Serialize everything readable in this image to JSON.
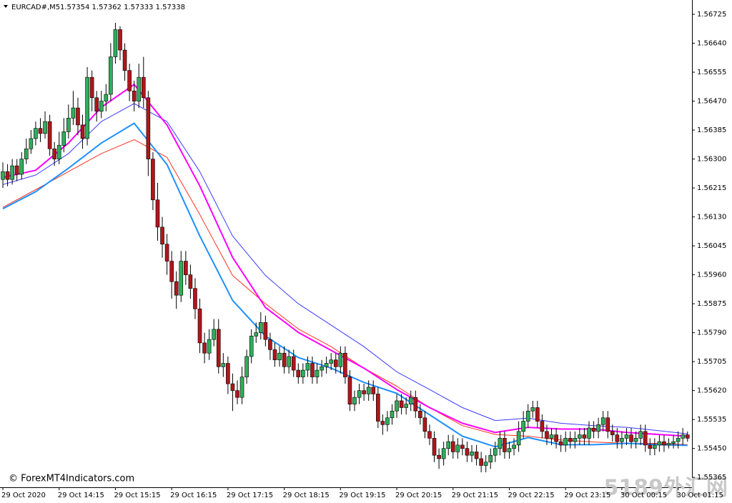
{
  "chart_data": {
    "type": "candlestick",
    "symbol": "EURCAD#,M5",
    "ohlc_text": "1.57354 1.57362 1.57333 1.57338",
    "watermark": "© ForexMT4Indicators.com",
    "watermark2": "5189外汇网",
    "bull_color": "#2fae5a",
    "bear_color": "#b0161b",
    "ylim": [
      1.55336,
      1.56767
    ],
    "yticks": [
      1.56725,
      {
        "value": 1.5664,
        "label": "1.56640"
      },
      1.56555,
      {
        "value": 1.5647,
        "label": "1.56470"
      },
      1.56385,
      {
        "value": 1.563,
        "label": "1.56300"
      },
      1.56215,
      {
        "value": 1.5613,
        "label": "1.56130"
      },
      1.56045,
      {
        "value": 1.5596,
        "label": "1.55960"
      },
      1.55875,
      {
        "value": 1.5579,
        "label": "1.55790"
      },
      1.55705,
      {
        "value": 1.5562,
        "label": "1.55620"
      },
      1.55535,
      {
        "value": 1.5545,
        "label": "1.55450"
      },
      1.55365
    ],
    "categories": [
      "29 Oct 2020",
      null,
      null,
      null,
      null,
      null,
      null,
      null,
      null,
      null,
      null,
      null,
      "29 Oct 14:15",
      null,
      null,
      null,
      null,
      null,
      null,
      null,
      null,
      null,
      null,
      null,
      "29 Oct 15:15",
      null,
      null,
      null,
      null,
      null,
      null,
      null,
      null,
      null,
      null,
      null,
      "29 Oct 16:15",
      null,
      null,
      null,
      null,
      null,
      null,
      null,
      null,
      null,
      null,
      null,
      "29 Oct 17:15",
      null,
      null,
      null,
      null,
      null,
      null,
      null,
      null,
      null,
      null,
      null,
      "29 Oct 18:15",
      null,
      null,
      null,
      null,
      null,
      null,
      null,
      null,
      null,
      null,
      null,
      "29 Oct 19:15",
      null,
      null,
      null,
      null,
      null,
      null,
      null,
      null,
      null,
      null,
      null,
      "29 Oct 20:15",
      null,
      null,
      null,
      null,
      null,
      null,
      null,
      null,
      null,
      null,
      null,
      "29 Oct 21:15",
      null,
      null,
      null,
      null,
      null,
      null,
      null,
      null,
      null,
      null,
      null,
      "29 Oct 22:15",
      null,
      null,
      null,
      null,
      null,
      null,
      null,
      null,
      null,
      null,
      null,
      "29 Oct 23:15",
      null,
      null,
      null,
      null,
      null,
      null,
      null,
      null,
      null,
      null,
      null,
      "30 Oct 00:15",
      null,
      null,
      null,
      null,
      null,
      null,
      null,
      null,
      null,
      null,
      null,
      "30 Oct 01:15",
      null,
      null
    ],
    "open": [
      1.5624,
      1.56263,
      1.5624,
      1.5628,
      1.56255,
      1.563,
      1.5633,
      1.5636,
      1.5639,
      1.56375,
      1.5641,
      1.5633,
      1.563,
      1.5634,
      1.5638,
      1.5642,
      1.5645,
      1.564,
      1.5636,
      1.5654,
      1.5648,
      1.5644,
      1.5647,
      1.5649,
      1.566,
      1.5668,
      1.5662,
      1.5656,
      1.565,
      1.5647,
      1.5654,
      1.5648,
      1.563,
      1.5618,
      1.561,
      1.5605,
      1.56,
      1.5594,
      1.559,
      1.56,
      1.5596,
      1.5592,
      1.5586,
      1.5576,
      1.5573,
      1.5577,
      1.558,
      1.5569,
      1.557,
      1.5564,
      1.5562,
      1.556,
      1.5566,
      1.5572,
      1.5578,
      1.5579,
      1.5582,
      1.5577,
      1.5574,
      1.5571,
      1.5573,
      1.5569,
      1.5572,
      1.5568,
      1.5566,
      1.5568,
      1.557,
      1.5566,
      1.5568,
      1.5569,
      1.557,
      1.5571,
      1.5569,
      1.5573,
      1.5566,
      1.5558,
      1.556,
      1.5562,
      1.5561,
      1.5563,
      1.5561,
      1.5553,
      1.5552,
      1.5554,
      1.5556,
      1.5559,
      1.5557,
      1.5558,
      1.556,
      1.5556,
      1.5554,
      1.555,
      1.5548,
      1.5543,
      1.5542,
      1.5545,
      1.5547,
      1.5544,
      1.5546,
      1.5545,
      1.5543,
      1.5544,
      1.5542,
      1.554,
      1.5541,
      1.5543,
      1.5545,
      1.5548,
      1.5544,
      1.5545,
      1.5546,
      1.555,
      1.5553,
      1.5556,
      1.5557,
      1.5553,
      1.555,
      1.5548,
      1.5549,
      1.5547,
      1.5546,
      1.5548,
      1.5547,
      1.5548,
      1.5549,
      1.5548,
      1.5551,
      1.555,
      1.5552,
      1.5554,
      1.555,
      1.5549,
      1.5547,
      1.5548,
      1.5549,
      1.5547,
      1.5548,
      1.555,
      1.5546,
      1.5545,
      1.5546,
      1.5547,
      1.5546,
      1.55465,
      1.5547,
      1.5548,
      1.5549
    ],
    "high": [
      1.5629,
      1.56285,
      1.563,
      1.563,
      1.5632,
      1.5636,
      1.56385,
      1.5641,
      1.5642,
      1.5644,
      1.5643,
      1.5635,
      1.5638,
      1.5642,
      1.5646,
      1.565,
      1.5648,
      1.5643,
      1.5657,
      1.5656,
      1.565,
      1.565,
      1.5652,
      1.5664,
      1.567,
      1.5669,
      1.5664,
      1.5658,
      1.5653,
      1.5658,
      1.566,
      1.565,
      1.5632,
      1.5623,
      1.5613,
      1.5608,
      1.5603,
      1.5597,
      1.5603,
      1.5603,
      1.5599,
      1.5595,
      1.5589,
      1.5579,
      1.558,
      1.5583,
      1.5583,
      1.5573,
      1.5572,
      1.5567,
      1.5565,
      1.5569,
      1.5574,
      1.558,
      1.5582,
      1.5585,
      1.5584,
      1.5579,
      1.5576,
      1.5575,
      1.5575,
      1.5574,
      1.5574,
      1.557,
      1.557,
      1.5572,
      1.5572,
      1.557,
      1.5571,
      1.5572,
      1.5573,
      1.5573,
      1.5575,
      1.5575,
      1.5568,
      1.5562,
      1.5564,
      1.5564,
      1.5565,
      1.5565,
      1.5563,
      1.5555,
      1.5556,
      1.5558,
      1.5561,
      1.5561,
      1.556,
      1.5562,
      1.5562,
      1.5558,
      1.5556,
      1.5552,
      1.555,
      1.5545,
      1.5547,
      1.5549,
      1.5549,
      1.5548,
      1.5548,
      1.5547,
      1.5546,
      1.5546,
      1.5544,
      1.5543,
      1.5545,
      1.5547,
      1.555,
      1.555,
      1.5547,
      1.5548,
      1.5553,
      1.5556,
      1.5558,
      1.5559,
      1.5559,
      1.5555,
      1.5552,
      1.5551,
      1.5551,
      1.5549,
      1.555,
      1.555,
      1.555,
      1.5551,
      1.5551,
      1.5553,
      1.5553,
      1.5554,
      1.5556,
      1.5556,
      1.5552,
      1.5551,
      1.555,
      1.5551,
      1.5551,
      1.555,
      1.5552,
      1.5552,
      1.5548,
      1.5548,
      1.5549,
      1.5549,
      1.5548,
      1.5549,
      1.555,
      1.5551,
      1.555
    ],
    "low": [
      1.56215,
      1.5622,
      1.56225,
      1.56235,
      1.5624,
      1.56285,
      1.56315,
      1.5634,
      1.5635,
      1.5636,
      1.5631,
      1.5628,
      1.56285,
      1.5632,
      1.5636,
      1.564,
      1.5637,
      1.5633,
      1.5634,
      1.5644,
      1.5641,
      1.5642,
      1.5644,
      1.5647,
      1.5658,
      1.5659,
      1.5653,
      1.5647,
      1.5644,
      1.5645,
      1.5645,
      1.5625,
      1.5615,
      1.5606,
      1.5601,
      1.5596,
      1.5589,
      1.5586,
      1.5588,
      1.5593,
      1.5589,
      1.5583,
      1.5573,
      1.557,
      1.5571,
      1.5575,
      1.5567,
      1.5566,
      1.5561,
      1.5556,
      1.5558,
      1.5558,
      1.5564,
      1.557,
      1.5576,
      1.5577,
      1.5575,
      1.5571,
      1.5569,
      1.5569,
      1.5567,
      1.5567,
      1.5566,
      1.5564,
      1.5564,
      1.5566,
      1.5564,
      1.5564,
      1.5566,
      1.5567,
      1.5568,
      1.5567,
      1.5567,
      1.5564,
      1.5556,
      1.5556,
      1.5558,
      1.5559,
      1.5559,
      1.5559,
      1.5551,
      1.5549,
      1.555,
      1.5552,
      1.5554,
      1.5555,
      1.5555,
      1.5556,
      1.5554,
      1.5552,
      1.5548,
      1.5546,
      1.5541,
      1.5539,
      1.554,
      1.5543,
      1.5542,
      1.5542,
      1.5543,
      1.5541,
      1.5541,
      1.554,
      1.5538,
      1.5538,
      1.5539,
      1.5541,
      1.5543,
      1.5542,
      1.5542,
      1.5543,
      1.5544,
      1.5548,
      1.5551,
      1.5554,
      1.5551,
      1.5548,
      1.5546,
      1.5546,
      1.5545,
      1.5544,
      1.5544,
      1.5545,
      1.5545,
      1.5546,
      1.5546,
      1.5546,
      1.5548,
      1.5548,
      1.555,
      1.5548,
      1.5547,
      1.5545,
      1.5545,
      1.5546,
      1.5545,
      1.5545,
      1.5546,
      1.5544,
      1.5543,
      1.5543,
      1.5544,
      1.5544,
      1.5545,
      1.5545,
      1.5545,
      1.5546,
      1.5547
    ],
    "close": [
      1.56263,
      1.5624,
      1.5628,
      1.56255,
      1.563,
      1.5633,
      1.5636,
      1.5639,
      1.56375,
      1.5641,
      1.5633,
      1.563,
      1.5634,
      1.5638,
      1.5642,
      1.5645,
      1.564,
      1.5636,
      1.5654,
      1.5648,
      1.5644,
      1.5647,
      1.5649,
      1.566,
      1.5668,
      1.5662,
      1.5656,
      1.565,
      1.5647,
      1.5654,
      1.5648,
      1.563,
      1.5618,
      1.561,
      1.5605,
      1.56,
      1.5594,
      1.559,
      1.56,
      1.5596,
      1.5592,
      1.5586,
      1.5576,
      1.5573,
      1.5577,
      1.558,
      1.5569,
      1.557,
      1.5564,
      1.5562,
      1.556,
      1.5566,
      1.5572,
      1.5578,
      1.5579,
      1.5582,
      1.5577,
      1.5574,
      1.5571,
      1.5573,
      1.5569,
      1.5572,
      1.5568,
      1.5566,
      1.5568,
      1.557,
      1.5566,
      1.5568,
      1.5569,
      1.557,
      1.5571,
      1.5569,
      1.5573,
      1.5566,
      1.5558,
      1.556,
      1.5562,
      1.5561,
      1.5563,
      1.5561,
      1.5553,
      1.5552,
      1.5554,
      1.5556,
      1.5559,
      1.5557,
      1.5558,
      1.556,
      1.5556,
      1.5554,
      1.555,
      1.5548,
      1.5543,
      1.5542,
      1.5545,
      1.5547,
      1.5544,
      1.5546,
      1.5545,
      1.5543,
      1.5544,
      1.5542,
      1.554,
      1.5541,
      1.5543,
      1.5545,
      1.5548,
      1.5544,
      1.5545,
      1.5546,
      1.555,
      1.5553,
      1.5556,
      1.5557,
      1.5553,
      1.555,
      1.5548,
      1.5549,
      1.5547,
      1.5546,
      1.5548,
      1.5547,
      1.5548,
      1.5549,
      1.5548,
      1.5551,
      1.555,
      1.5552,
      1.5554,
      1.555,
      1.5549,
      1.5547,
      1.5548,
      1.5549,
      1.5547,
      1.5548,
      1.555,
      1.5546,
      1.5545,
      1.5546,
      1.5547,
      1.5546,
      1.55465,
      1.5547,
      1.5548,
      1.5549,
      1.5548
    ],
    "lines": [
      {
        "color": "#ff3020",
        "width": 1,
        "x": [
          0,
          7,
          14,
          21,
          28,
          35,
          42,
          49,
          56,
          63,
          70,
          77,
          84,
          91,
          98,
          105,
          112,
          119,
          126,
          133,
          140,
          146
        ],
        "values": [
          1.56158,
          1.5621,
          1.56263,
          1.56316,
          1.56357,
          1.56305,
          1.56137,
          1.55958,
          1.55875,
          1.55801,
          1.55749,
          1.55686,
          1.55633,
          1.5557,
          1.55517,
          1.55491,
          1.55486,
          1.55475,
          1.55469,
          1.55465,
          1.55465,
          1.55461
        ]
      },
      {
        "color": "#3a3aff",
        "width": 1,
        "x": [
          0,
          7,
          14,
          21,
          28,
          35,
          42,
          49,
          56,
          63,
          70,
          77,
          84,
          91,
          98,
          105,
          112,
          119,
          126,
          133,
          140,
          146
        ],
        "values": [
          1.56225,
          1.56253,
          1.56316,
          1.5641,
          1.56463,
          1.5641,
          1.56263,
          1.56074,
          1.55958,
          1.55875,
          1.55812,
          1.55749,
          1.55675,
          1.55623,
          1.5557,
          1.55532,
          1.55539,
          1.55524,
          1.55517,
          1.55512,
          1.55502,
          1.55493
        ]
      },
      {
        "color": "#1e90ff",
        "width": 2,
        "x": [
          0,
          7,
          14,
          21,
          28,
          35,
          42,
          49,
          56,
          63,
          70,
          77,
          84,
          91,
          98,
          105,
          112,
          119,
          126,
          133,
          140,
          146
        ],
        "values": [
          1.56154,
          1.56204,
          1.56273,
          1.56347,
          1.56405,
          1.56284,
          1.56074,
          1.55885,
          1.5578,
          1.55717,
          1.55686,
          1.55644,
          1.55612,
          1.55549,
          1.55486,
          1.55455,
          1.55482,
          1.55461,
          1.55461,
          1.55465,
          1.55461,
          1.55459
        ]
      },
      {
        "color": "#ff00ff",
        "width": 2,
        "x": [
          0,
          7,
          14,
          21,
          28,
          35,
          42,
          49,
          56,
          63,
          70,
          77,
          84,
          91,
          98,
          105,
          112,
          119,
          126,
          133,
          140,
          146
        ],
        "values": [
          1.56246,
          1.56267,
          1.56347,
          1.56452,
          1.56519,
          1.564,
          1.56221,
          1.56011,
          1.55864,
          1.55791,
          1.55738,
          1.55686,
          1.55623,
          1.5557,
          1.55524,
          1.55497,
          1.55512,
          1.55507,
          1.55507,
          1.55497,
          1.55491,
          1.55486
        ]
      }
    ]
  }
}
